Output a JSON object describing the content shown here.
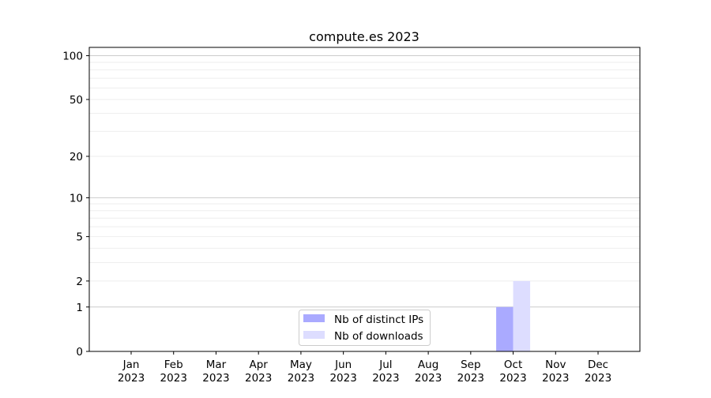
{
  "chart_data": {
    "type": "bar",
    "title": "compute.es 2023",
    "xlabel": "",
    "ylabel": "",
    "y_scale": "log(1+y)",
    "ylim": [
      0,
      114
    ],
    "y_ticks": [
      0,
      1,
      2,
      5,
      10,
      20,
      50,
      100
    ],
    "y_tick_labels": [
      "0",
      "1",
      "2",
      "5",
      "10",
      "20",
      "50",
      "100"
    ],
    "grid": true,
    "categories": [
      "Jan\n2023",
      "Feb\n2023",
      "Mar\n2023",
      "Apr\n2023",
      "May\n2023",
      "Jun\n2023",
      "Jul\n2023",
      "Aug\n2023",
      "Sep\n2023",
      "Oct\n2023",
      "Nov\n2023",
      "Dec\n2023"
    ],
    "category_month": [
      "Jan",
      "Feb",
      "Mar",
      "Apr",
      "May",
      "Jun",
      "Jul",
      "Aug",
      "Sep",
      "Oct",
      "Nov",
      "Dec"
    ],
    "category_year": "2023",
    "series": [
      {
        "name": "Nb of distinct IPs",
        "color": "#aaaaff",
        "values": [
          0,
          0,
          0,
          0,
          0,
          0,
          0,
          0,
          0,
          1,
          0,
          0
        ]
      },
      {
        "name": "Nb of downloads",
        "color": "#ddddff",
        "values": [
          0,
          0,
          0,
          0,
          0,
          0,
          0,
          0,
          0,
          2,
          0,
          0
        ]
      }
    ],
    "legend_position": "lower-center"
  }
}
